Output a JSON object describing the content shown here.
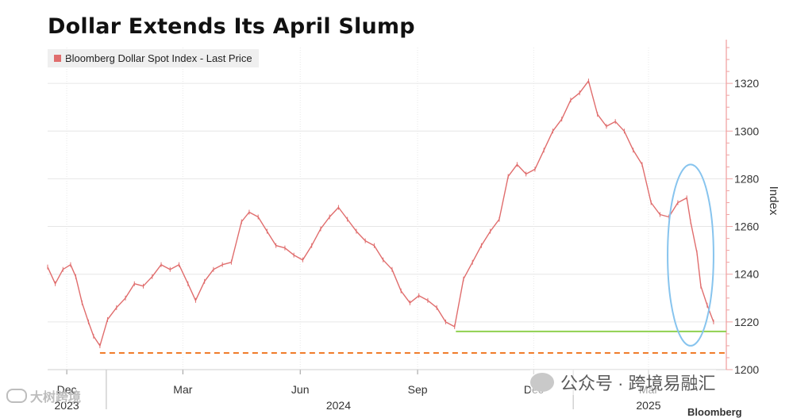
{
  "chart_data": {
    "type": "line",
    "title": "Dollar Extends Its April Slump",
    "ylabel": "Index",
    "ylim": [
      1200,
      1335
    ],
    "yticks": [
      1200,
      1220,
      1240,
      1260,
      1280,
      1300,
      1320
    ],
    "month_labels": [
      "Dec",
      "Mar",
      "Jun",
      "Sep",
      "Dec",
      "Mar"
    ],
    "year_labels": [
      "2023",
      "2024",
      "2025"
    ],
    "series": [
      {
        "name": "Bloomberg Dollar Spot Index - Last Price",
        "color": "#e06d6d",
        "points": [
          [
            "2023-11-16",
            1243
          ],
          [
            "2023-11-22",
            1236
          ],
          [
            "2023-11-28",
            1242
          ],
          [
            "2023-12-04",
            1244
          ],
          [
            "2023-12-08",
            1239
          ],
          [
            "2023-12-13",
            1228
          ],
          [
            "2023-12-18",
            1220
          ],
          [
            "2023-12-22",
            1214
          ],
          [
            "2023-12-27",
            1210
          ],
          [
            "2024-01-02",
            1221
          ],
          [
            "2024-01-09",
            1226
          ],
          [
            "2024-01-16",
            1230
          ],
          [
            "2024-01-23",
            1236
          ],
          [
            "2024-01-30",
            1235
          ],
          [
            "2024-02-06",
            1239
          ],
          [
            "2024-02-13",
            1244
          ],
          [
            "2024-02-20",
            1242
          ],
          [
            "2024-02-27",
            1244
          ],
          [
            "2024-03-05",
            1236
          ],
          [
            "2024-03-11",
            1229
          ],
          [
            "2024-03-18",
            1237
          ],
          [
            "2024-03-25",
            1242
          ],
          [
            "2024-04-01",
            1244
          ],
          [
            "2024-04-08",
            1245
          ],
          [
            "2024-04-16",
            1262
          ],
          [
            "2024-04-22",
            1266
          ],
          [
            "2024-04-29",
            1264
          ],
          [
            "2024-05-06",
            1258
          ],
          [
            "2024-05-13",
            1252
          ],
          [
            "2024-05-20",
            1251
          ],
          [
            "2024-05-27",
            1248
          ],
          [
            "2024-06-03",
            1246
          ],
          [
            "2024-06-10",
            1252
          ],
          [
            "2024-06-17",
            1259
          ],
          [
            "2024-06-24",
            1264
          ],
          [
            "2024-07-01",
            1268
          ],
          [
            "2024-07-08",
            1263
          ],
          [
            "2024-07-15",
            1258
          ],
          [
            "2024-07-22",
            1254
          ],
          [
            "2024-07-29",
            1252
          ],
          [
            "2024-08-05",
            1246
          ],
          [
            "2024-08-12",
            1242
          ],
          [
            "2024-08-19",
            1233
          ],
          [
            "2024-08-26",
            1228
          ],
          [
            "2024-09-02",
            1231
          ],
          [
            "2024-09-09",
            1229
          ],
          [
            "2024-09-16",
            1226
          ],
          [
            "2024-09-23",
            1220
          ],
          [
            "2024-09-30",
            1218
          ],
          [
            "2024-10-07",
            1238
          ],
          [
            "2024-10-14",
            1245
          ],
          [
            "2024-10-21",
            1252
          ],
          [
            "2024-10-28",
            1258
          ],
          [
            "2024-11-04",
            1263
          ],
          [
            "2024-11-11",
            1281
          ],
          [
            "2024-11-18",
            1286
          ],
          [
            "2024-11-25",
            1282
          ],
          [
            "2024-12-02",
            1284
          ],
          [
            "2024-12-09",
            1292
          ],
          [
            "2024-12-16",
            1300
          ],
          [
            "2024-12-23",
            1305
          ],
          [
            "2024-12-30",
            1313
          ],
          [
            "2025-01-06",
            1316
          ],
          [
            "2025-01-13",
            1321
          ],
          [
            "2025-01-20",
            1307
          ],
          [
            "2025-01-27",
            1302
          ],
          [
            "2025-02-03",
            1304
          ],
          [
            "2025-02-10",
            1300
          ],
          [
            "2025-02-17",
            1292
          ],
          [
            "2025-02-24",
            1286
          ],
          [
            "2025-03-03",
            1270
          ],
          [
            "2025-03-10",
            1265
          ],
          [
            "2025-03-17",
            1264
          ],
          [
            "2025-03-24",
            1270
          ],
          [
            "2025-03-31",
            1272
          ],
          [
            "2025-04-03",
            1262
          ],
          [
            "2025-04-08",
            1249
          ],
          [
            "2025-04-11",
            1235
          ],
          [
            "2025-04-16",
            1227
          ],
          [
            "2025-04-21",
            1220
          ]
        ]
      }
    ],
    "reference_lines": [
      {
        "style": "dashed",
        "color": "#f07c2a",
        "y": 1207,
        "x_start": "2023-12-27",
        "x_end": "2025-05-01"
      },
      {
        "style": "solid",
        "color": "#8fd14f",
        "y": 1216,
        "x_start": "2024-10-01",
        "x_end": "2025-05-01"
      }
    ],
    "annotations": [
      {
        "type": "ellipse",
        "color": "#87c4ee",
        "x_center": "2025-04-03",
        "y_center": 1248,
        "x_half_days": 18,
        "y_half": 38
      }
    ],
    "grid": true,
    "x_range": [
      "2023-11-16",
      "2025-05-01"
    ],
    "legend_position": "top-left"
  },
  "watermarks": {
    "left_text": "大树跨境",
    "right_text": "公众号 · 跨境易融汇"
  },
  "source_text": "Bloomberg"
}
